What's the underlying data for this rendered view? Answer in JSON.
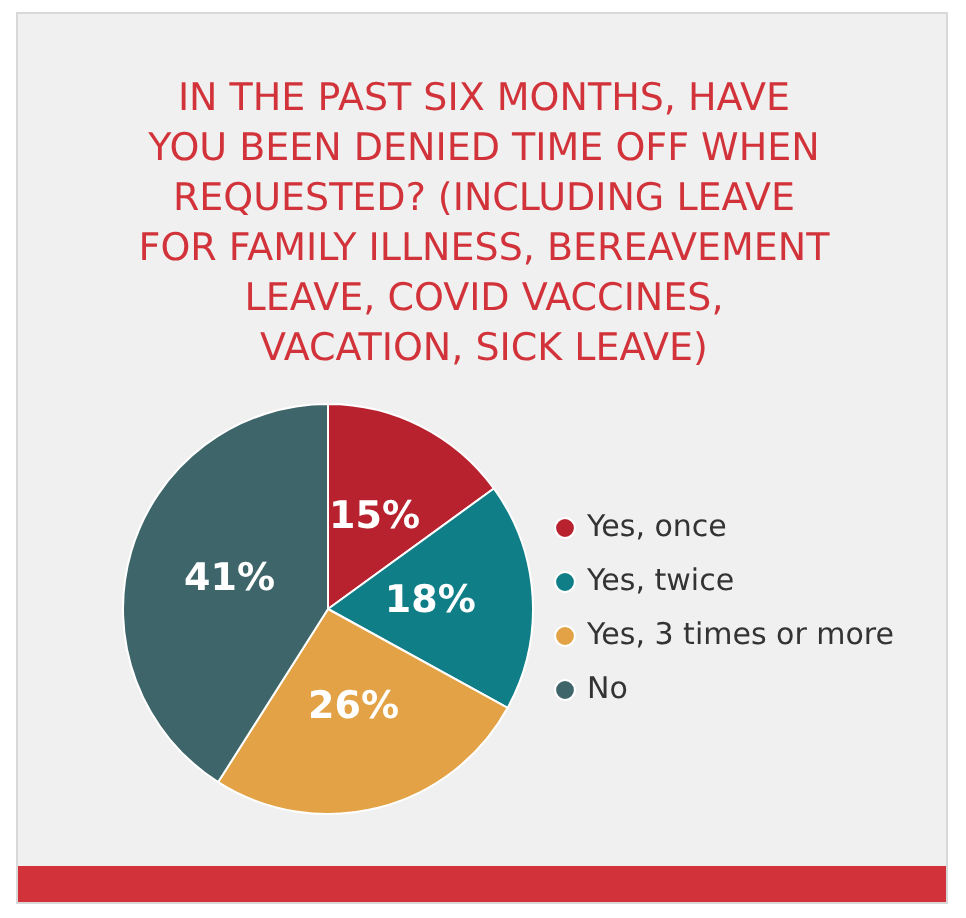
{
  "chart_data": {
    "type": "pie",
    "title": "IN THE PAST SIX MONTHS, HAVE YOU BEEN DENIED TIME OFF WHEN REQUESTED? (INCLUDING LEAVE FOR FAMILY ILLNESS, BEREAVEMENT LEAVE, COVID VACCINES, VACATION, SICK LEAVE)",
    "categories": [
      "Yes, once",
      "Yes, twice",
      "Yes, 3 times or more",
      "No"
    ],
    "values": [
      15,
      18,
      26,
      41
    ],
    "colors": [
      "#b8222f",
      "#0f7e87",
      "#e2a245",
      "#3e6569"
    ],
    "value_labels": [
      "15%",
      "18%",
      "26%",
      "41%"
    ],
    "legend": "right"
  }
}
